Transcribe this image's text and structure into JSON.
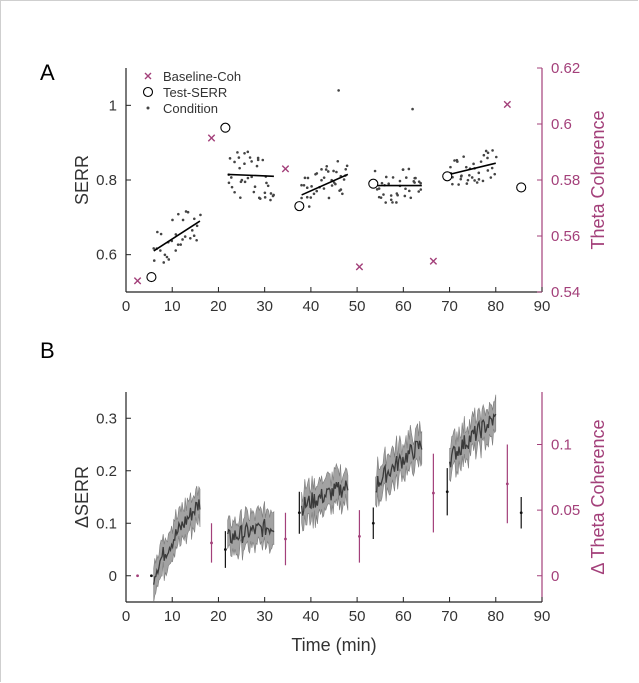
{
  "colors": {
    "coherence": "#a3407a",
    "serr": "#000000",
    "ribbon": "#999999",
    "ribbon_edge": "#6d6d6d",
    "trend": "#3a3a3a"
  },
  "chart_data": [
    {
      "panel_label": "A",
      "type": "scatter",
      "ylabel": "SERR",
      "y2label": "Theta Coherence",
      "xlim": [
        0,
        90
      ],
      "ylim": [
        0.5,
        1.1
      ],
      "y2lim": [
        0.54,
        0.62
      ],
      "xticks": [
        "0",
        "10",
        "20",
        "30",
        "40",
        "50",
        "60",
        "70",
        "80",
        "90"
      ],
      "yticks": [
        "0.6",
        "0.8",
        "1"
      ],
      "y2ticks": [
        "0.54",
        "0.56",
        "0.58",
        "0.6",
        "0.62"
      ],
      "legend": [
        "Baseline-Coh",
        "Test-SERR",
        "Condition"
      ],
      "legend_position": "top-left",
      "series": [
        {
          "name": "Baseline-Coh",
          "marker": "x",
          "axis": "right",
          "x": [
            2.5,
            18.5,
            34.5,
            50.5,
            66.5,
            82.5
          ],
          "y": [
            0.544,
            0.595,
            0.584,
            0.549,
            0.551,
            0.607
          ]
        },
        {
          "name": "Test-SERR",
          "marker": "circle",
          "axis": "left",
          "x": [
            5.5,
            21.5,
            37.5,
            53.5,
            69.5,
            85.5
          ],
          "y": [
            0.54,
            0.94,
            0.73,
            0.79,
            0.81,
            0.78
          ]
        },
        {
          "name": "Condition",
          "marker": "dot",
          "axis": "left",
          "blocks": [
            {
              "x": [
                6,
                16
              ],
              "center": 0.65,
              "spread": 0.07,
              "trend": [
                0.61,
                0.69
              ],
              "n": 30
            },
            {
              "x": [
                22,
                32
              ],
              "center": 0.81,
              "spread": 0.08,
              "trend": [
                0.815,
                0.81
              ],
              "n": 38
            },
            {
              "x": [
                38,
                48
              ],
              "center": 0.79,
              "spread": 0.06,
              "trend": [
                0.76,
                0.815
              ],
              "n": 38
            },
            {
              "x": [
                54,
                64
              ],
              "center": 0.78,
              "spread": 0.06,
              "trend": [
                0.785,
                0.785
              ],
              "n": 36
            },
            {
              "x": [
                70,
                80
              ],
              "center": 0.83,
              "spread": 0.05,
              "trend": [
                0.815,
                0.845
              ],
              "n": 36
            }
          ],
          "outliers": [
            {
              "x": 46,
              "y": 1.04
            },
            {
              "x": 62,
              "y": 0.99
            }
          ]
        }
      ]
    },
    {
      "panel_label": "B",
      "type": "line",
      "ylabel": "ΔSERR",
      "y2label": "Δ Theta Coherence",
      "xlabel": "Time (min)",
      "xlim": [
        0,
        90
      ],
      "ylim": [
        -0.05,
        0.35
      ],
      "y2lim": [
        -0.02,
        0.14
      ],
      "xticks": [
        "0",
        "10",
        "20",
        "30",
        "40",
        "50",
        "60",
        "70",
        "80",
        "90"
      ],
      "yticks": [
        "0",
        "0.1",
        "0.2",
        "0.3"
      ],
      "y2ticks": [
        "0",
        "0.05",
        "0.1"
      ],
      "series": [
        {
          "name": "ΔSERR",
          "band_halfwidth": 0.03,
          "blocks": [
            {
              "x": [
                6,
                16
              ],
              "start": 0.0,
              "end": 0.14
            },
            {
              "x": [
                22,
                32
              ],
              "start": 0.07,
              "end": 0.095
            },
            {
              "x": [
                38,
                48
              ],
              "start": 0.13,
              "end": 0.17
            },
            {
              "x": [
                54,
                64
              ],
              "start": 0.17,
              "end": 0.25
            },
            {
              "x": [
                70,
                80
              ],
              "start": 0.22,
              "end": 0.3
            }
          ]
        },
        {
          "name": "Test",
          "axis": "left",
          "x": [
            5.5,
            21.5,
            37.5,
            53.5,
            69.5,
            85.5
          ],
          "y": [
            0.0,
            0.05,
            0.12,
            0.1,
            0.16,
            0.12
          ],
          "err": [
            0.0,
            0.035,
            0.04,
            0.03,
            0.045,
            0.03
          ]
        },
        {
          "name": "Coherence",
          "axis": "right",
          "x": [
            2.5,
            18.5,
            34.5,
            50.5,
            66.5,
            82.5
          ],
          "y": [
            0.0,
            0.025,
            0.028,
            0.03,
            0.063,
            0.07
          ],
          "err": [
            0.0,
            0.015,
            0.02,
            0.02,
            0.03,
            0.03
          ]
        }
      ]
    }
  ]
}
